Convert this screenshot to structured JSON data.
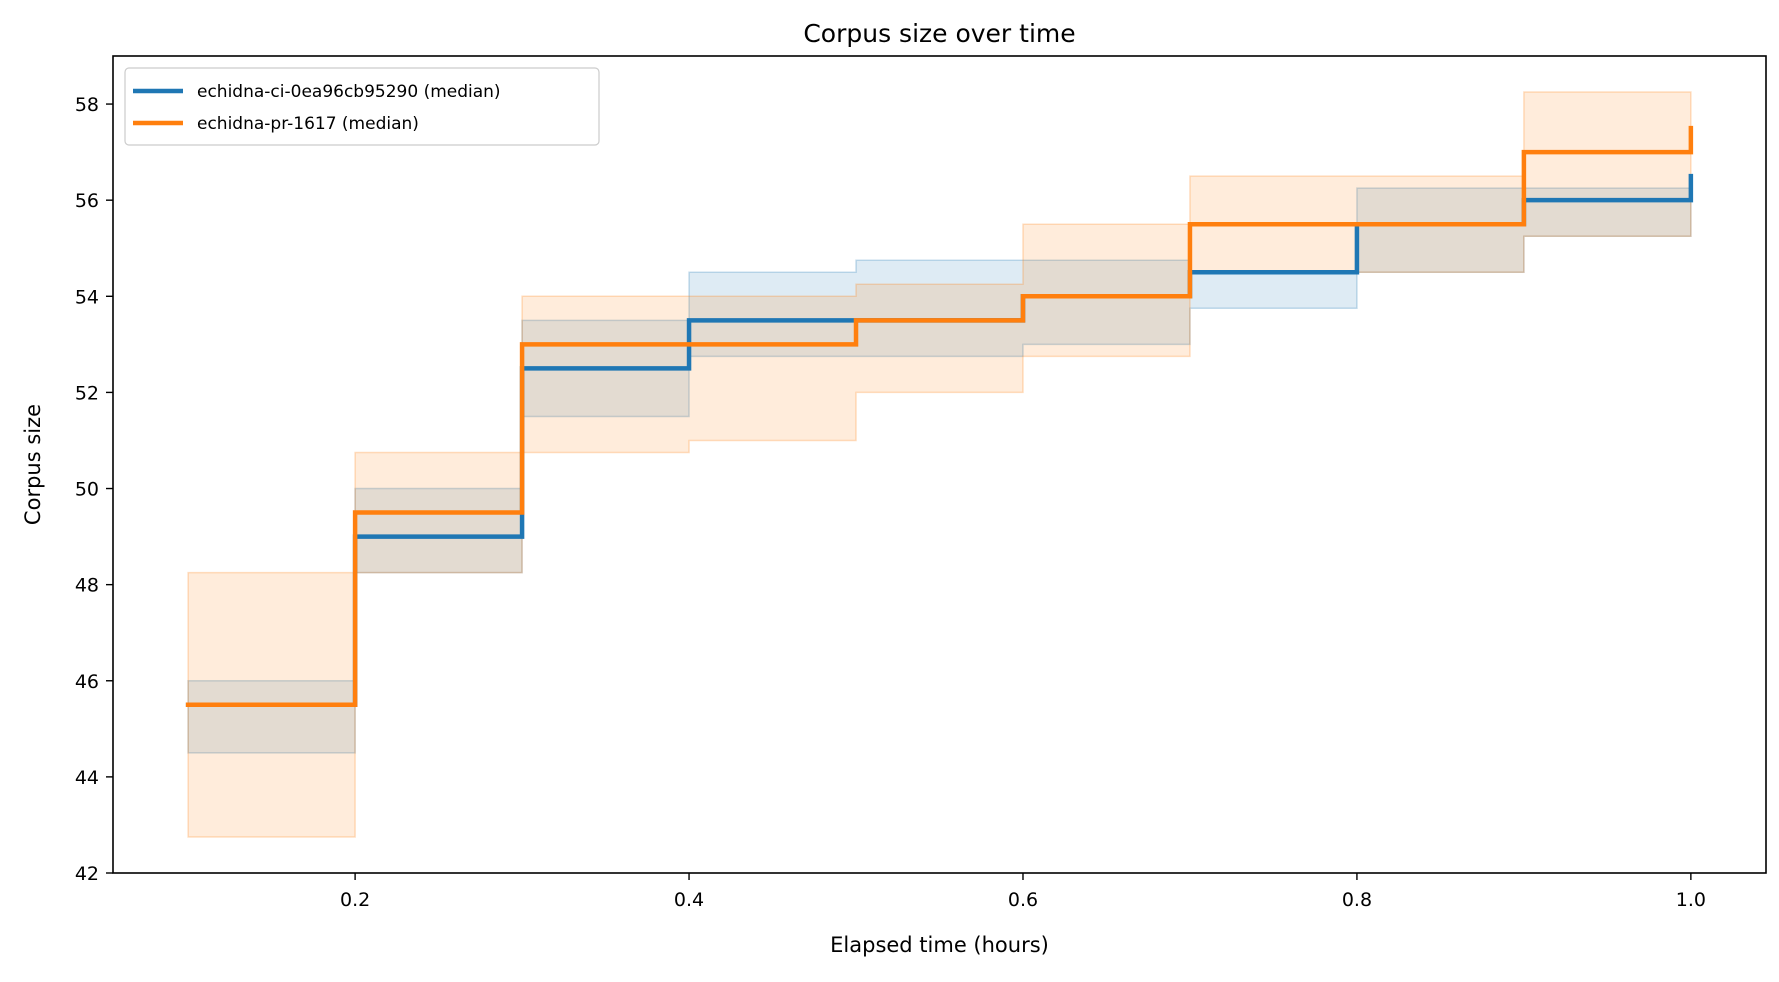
{
  "chart_data": {
    "type": "line",
    "step": "post",
    "title": "Corpus size over time",
    "xlabel": "Elapsed time (hours)",
    "ylabel": "Corpus size",
    "xlim": [
      0.055,
      1.045
    ],
    "ylim": [
      42,
      59
    ],
    "xticks": [
      0.2,
      0.4,
      0.6,
      0.8,
      1.0
    ],
    "xtick_labels": [
      "0.2",
      "0.4",
      "0.6",
      "0.8",
      "1.0"
    ],
    "yticks": [
      42,
      44,
      46,
      48,
      50,
      52,
      54,
      56,
      58
    ],
    "ytick_labels": [
      "42",
      "44",
      "46",
      "48",
      "50",
      "52",
      "54",
      "56",
      "58"
    ],
    "grid": false,
    "legend_position": "top-left",
    "x": [
      0.1,
      0.2,
      0.3,
      0.4,
      0.5,
      0.6,
      0.7,
      0.8,
      0.9,
      1.0
    ],
    "series": [
      {
        "name": "echidna-ci-0ea96cb95290 (median)",
        "color": "#1f77b4",
        "values": [
          45.5,
          49.0,
          52.5,
          53.5,
          53.5,
          54.0,
          54.5,
          55.5,
          56.0,
          56.5
        ],
        "band_lower": [
          44.5,
          48.25,
          51.5,
          52.75,
          52.75,
          53.0,
          53.75,
          54.5,
          55.25,
          55.25
        ],
        "band_upper": [
          46.0,
          50.0,
          53.5,
          54.5,
          54.75,
          54.75,
          54.5,
          56.25,
          56.25,
          56.25
        ]
      },
      {
        "name": "echidna-pr-1617 (median)",
        "color": "#ff7f0e",
        "values": [
          45.5,
          49.5,
          53.0,
          53.0,
          53.5,
          54.0,
          55.5,
          55.5,
          57.0,
          57.5
        ],
        "band_lower": [
          42.75,
          48.25,
          50.75,
          51.0,
          52.0,
          52.75,
          54.5,
          54.5,
          55.25,
          55.25
        ],
        "band_upper": [
          48.25,
          50.75,
          54.0,
          54.0,
          54.25,
          55.5,
          56.5,
          56.5,
          58.25,
          58.25
        ]
      }
    ]
  }
}
